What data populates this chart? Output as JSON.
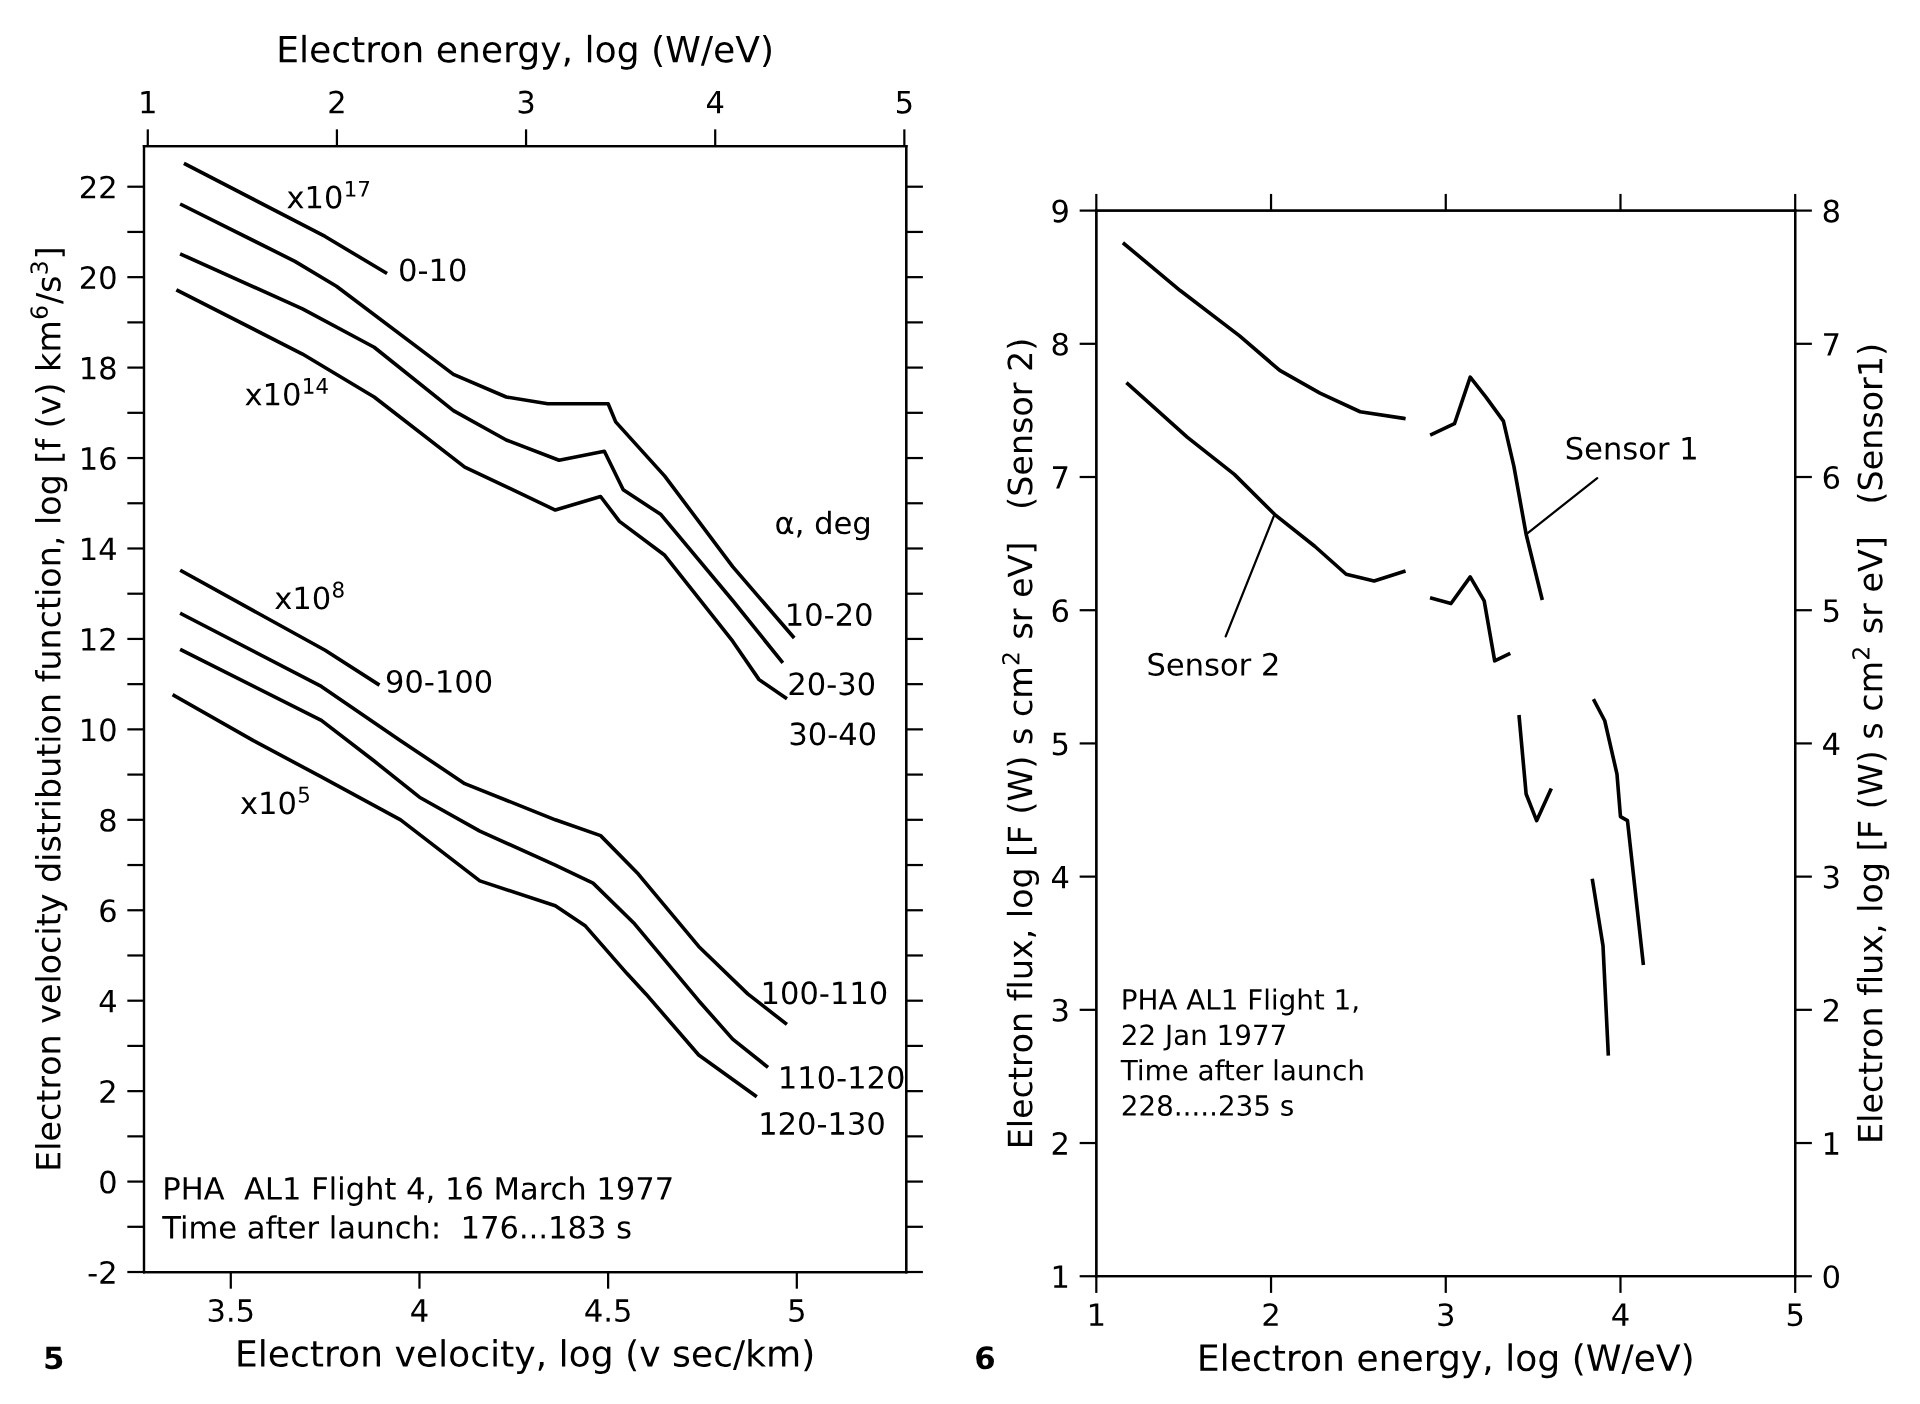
{
  "chart_data": [
    {
      "type": "line",
      "xlabel": "Electron velocity, log (v sec/km)",
      "x2label": "Electron energy, log (W/eV)",
      "ylabel": "Electron velocity distribution function, log [f (v) km$^{6}$/s$^{3}$]",
      "xlim": [
        3.27,
        5.29
      ],
      "xticks": [
        3.5,
        4,
        4.5,
        5
      ],
      "x2lim": [
        0.98,
        5.01
      ],
      "x2ticks": [
        1,
        2,
        3,
        4,
        5
      ],
      "ylim": [
        -2,
        22.9
      ],
      "yticks": [
        -2,
        {
          "value": -1,
          "label": null
        },
        0,
        {
          "value": 1,
          "label": null
        },
        2,
        {
          "value": 3,
          "label": null
        },
        4,
        {
          "value": 5,
          "label": null
        },
        6,
        {
          "value": 7,
          "label": null
        },
        8,
        {
          "value": 9,
          "label": null
        },
        10,
        {
          "value": 11,
          "label": null
        },
        12,
        {
          "value": 13,
          "label": null
        },
        14,
        {
          "value": 15,
          "label": null
        },
        16,
        {
          "value": 17,
          "label": null
        },
        18,
        {
          "value": 19,
          "label": null
        },
        20,
        {
          "value": 21,
          "label": null
        },
        22
      ],
      "grid": false,
      "legend": "right",
      "legend_title": "α, deg",
      "line_style": "solid",
      "marker": "none",
      "series": [
        {
          "name": "0-10",
          "color": "#000000",
          "x": [
            3.38,
            3.75,
            3.91
          ],
          "values": [
            22.5,
            20.9,
            20.1
          ]
        },
        {
          "name": "10-20",
          "color": "#000000",
          "x": [
            3.37,
            3.67,
            3.78,
            4.09,
            4.23,
            4.34,
            4.5,
            4.52,
            4.65,
            4.83,
            4.99
          ],
          "values": [
            21.6,
            20.35,
            19.8,
            17.85,
            17.35,
            17.2,
            17.2,
            16.8,
            15.6,
            13.6,
            12.05
          ]
        },
        {
          "name": "20-30",
          "color": "#000000",
          "x": [
            3.37,
            3.69,
            3.88,
            4.09,
            4.23,
            4.37,
            4.49,
            4.54,
            4.64,
            4.83,
            4.96
          ],
          "values": [
            20.5,
            19.3,
            18.45,
            17.05,
            16.4,
            15.95,
            16.15,
            15.3,
            14.75,
            12.85,
            11.5
          ]
        },
        {
          "name": "30-40",
          "color": "#000000",
          "x": [
            3.36,
            3.69,
            3.88,
            4.12,
            4.36,
            4.48,
            4.53,
            4.65,
            4.83,
            4.9,
            4.97
          ],
          "values": [
            19.7,
            18.3,
            17.35,
            15.8,
            14.85,
            15.15,
            14.6,
            13.85,
            11.95,
            11.1,
            10.7
          ]
        },
        {
          "name": "90-100",
          "color": "#000000",
          "x": [
            3.37,
            3.75,
            3.89
          ],
          "values": [
            13.5,
            11.75,
            11.0
          ]
        },
        {
          "name": "100-110",
          "color": "#000000",
          "x": [
            3.37,
            3.74,
            3.95,
            4.12,
            4.36,
            4.48,
            4.58,
            4.74,
            4.87,
            4.97
          ],
          "values": [
            12.55,
            10.95,
            9.75,
            8.8,
            8.0,
            7.65,
            6.8,
            5.2,
            4.15,
            3.5
          ]
        },
        {
          "name": "110-120",
          "color": "#000000",
          "x": [
            3.37,
            3.74,
            3.88,
            4.0,
            4.16,
            4.36,
            4.46,
            4.57,
            4.74,
            4.83,
            4.92
          ],
          "values": [
            11.75,
            10.2,
            9.3,
            8.5,
            7.75,
            7.0,
            6.6,
            5.7,
            4.0,
            3.15,
            2.55
          ]
        },
        {
          "name": "120-130",
          "color": "#000000",
          "x": [
            3.35,
            3.56,
            3.74,
            3.95,
            4.16,
            4.36,
            4.44,
            4.55,
            4.6,
            4.74,
            4.89
          ],
          "values": [
            10.75,
            9.75,
            8.95,
            8.0,
            6.65,
            6.1,
            5.65,
            4.6,
            4.15,
            2.8,
            1.9
          ]
        }
      ],
      "annotations": [
        "x10$^{17}$",
        "x10$^{14}$",
        "x10$^{8}$",
        "x10$^{5}$",
        "PHA  AL1 Flight 4, 16 March 1977\nTime after launch:  176...183 s",
        "5"
      ]
    },
    {
      "type": "line",
      "xlabel": "Electron energy, log (W/eV)",
      "ylabel": "Electron flux, log [F (W) s cm$^{2}$ sr eV]   (Sensor 2)",
      "y2label": "Electron flux, log [F (W) s cm$^{2}$ sr eV]   (Sensor1)",
      "xlim": [
        1,
        5
      ],
      "xticks": [
        1,
        2,
        3,
        4,
        5
      ],
      "ylim": [
        1,
        9
      ],
      "yticks": [
        1,
        2,
        3,
        4,
        5,
        6,
        7,
        8,
        9
      ],
      "y2lim": [
        0,
        8
      ],
      "y2ticks": [
        0,
        1,
        2,
        3,
        4,
        5,
        6,
        7,
        8
      ],
      "grid": false,
      "legend": false,
      "line_style": "solid",
      "marker": "none",
      "series": [
        {
          "name": "Sensor 1",
          "color": "#000000",
          "axis": "y2",
          "x": [
            1.16,
            1.48,
            1.82,
            2.05,
            2.28,
            2.51,
            2.76,
            2.84,
            2.92,
            3.05,
            3.14,
            3.23,
            3.33,
            3.39,
            3.46,
            3.55,
            3.7,
            3.85,
            3.91,
            3.98,
            4.0,
            4.04,
            4.13
          ],
          "values": [
            7.75,
            7.4,
            7.06,
            6.8,
            6.63,
            6.49,
            6.44,
            null,
            6.32,
            6.4,
            6.75,
            6.6,
            6.42,
            6.08,
            5.57,
            5.09,
            null,
            4.32,
            4.17,
            3.77,
            3.45,
            3.42,
            2.35
          ]
        },
        {
          "name": "Sensor 2",
          "color": "#000000",
          "x": [
            1.18,
            1.52,
            1.79,
            2.02,
            2.25,
            2.43,
            2.59,
            2.76,
            2.84,
            2.92,
            3.03,
            3.14,
            3.22,
            3.28,
            3.36,
            3.39,
            3.42,
            3.46,
            3.52,
            3.6,
            3.72,
            3.84,
            3.9,
            3.93
          ],
          "values": [
            7.7,
            7.3,
            7.02,
            6.72,
            6.48,
            6.27,
            6.22,
            6.29,
            null,
            6.09,
            6.05,
            6.25,
            6.07,
            5.62,
            5.67,
            null,
            5.2,
            4.62,
            4.42,
            4.65,
            null,
            3.97,
            3.48,
            2.67
          ]
        }
      ],
      "annotations": [
        "PHA AL1 Flight 1,\n22 Jan 1977\nTime after launch\n228.....235 s",
        "6"
      ]
    }
  ]
}
